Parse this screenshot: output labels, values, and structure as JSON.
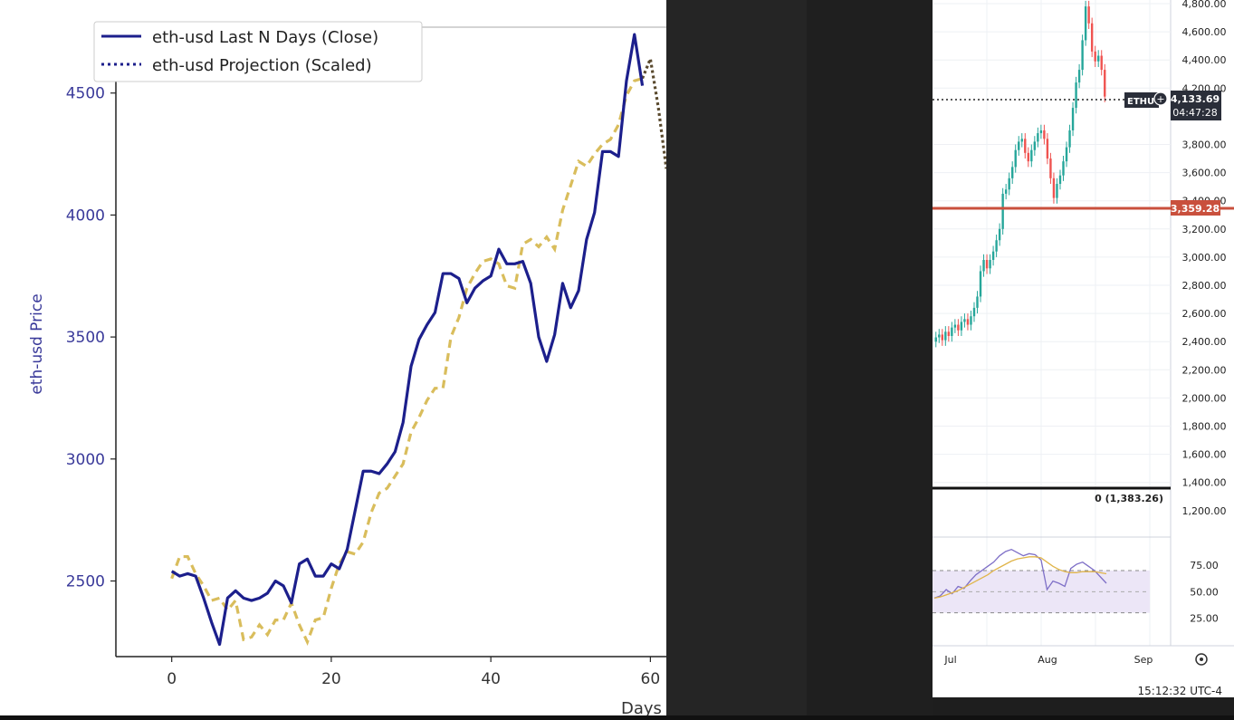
{
  "left_chart": {
    "ylabel": "eth-usd Price",
    "xlabel": "Days",
    "legend": {
      "close_label": "eth-usd Last N Days (Close)",
      "projection_label": "eth-usd Projection (Scaled)"
    },
    "colors": {
      "close": "#1c1f8c",
      "projection": "#d9bd5c",
      "projection_tail": "#5a4a2e",
      "axis_text": "#3a3a9a"
    }
  },
  "chart_data": [
    {
      "type": "line",
      "title": "",
      "xlabel": "Days",
      "ylabel": "eth-usd Price",
      "xlim": [
        -7,
        62
      ],
      "ylim": [
        2190,
        4770
      ],
      "xticks": [
        0,
        20,
        40,
        60
      ],
      "yticks": [
        2500,
        3000,
        3500,
        4000,
        4500
      ],
      "legend_position": "top-left",
      "grid": false,
      "series": [
        {
          "name": "eth-usd Last N Days (Close)",
          "style": "solid",
          "color": "#1c1f8c",
          "x": [
            0,
            1,
            2,
            3,
            4,
            5,
            6,
            7,
            8,
            9,
            10,
            11,
            12,
            13,
            14,
            15,
            16,
            17,
            18,
            19,
            20,
            21,
            22,
            23,
            24,
            25,
            26,
            27,
            28,
            29,
            30,
            31,
            32,
            33,
            34,
            35,
            36,
            37,
            38,
            39,
            40,
            41,
            42,
            43,
            44,
            45,
            46,
            47,
            48,
            49,
            50,
            51,
            52,
            53,
            54,
            55,
            56,
            57,
            58,
            59
          ],
          "values": [
            2540,
            2520,
            2530,
            2520,
            2430,
            2330,
            2240,
            2430,
            2460,
            2430,
            2420,
            2430,
            2450,
            2500,
            2480,
            2410,
            2570,
            2590,
            2520,
            2520,
            2570,
            2550,
            2630,
            2790,
            2950,
            2950,
            2940,
            2980,
            3030,
            3150,
            3380,
            3490,
            3550,
            3600,
            3760,
            3760,
            3740,
            3640,
            3700,
            3730,
            3750,
            3860,
            3800,
            3800,
            3810,
            3720,
            3500,
            3400,
            3510,
            3720,
            3620,
            3690,
            3900,
            4010,
            4260,
            4260,
            4240,
            4550,
            4740,
            4530
          ]
        },
        {
          "name": "eth-usd Projection (Scaled)",
          "style": "dashed",
          "color": "#d9bd5c",
          "x": [
            0,
            1,
            2,
            3,
            4,
            5,
            6,
            7,
            8,
            9,
            10,
            11,
            12,
            13,
            14,
            15,
            16,
            17,
            18,
            19,
            20,
            21,
            22,
            23,
            24,
            25,
            26,
            27,
            28,
            29,
            30,
            31,
            32,
            33,
            34,
            35,
            36,
            37,
            38,
            39,
            40,
            41,
            42,
            43,
            44,
            45,
            46,
            47,
            48,
            49,
            50,
            51,
            52,
            53,
            54,
            55,
            56,
            57,
            58,
            59,
            60,
            61,
            62
          ],
          "values": [
            2510,
            2600,
            2600,
            2530,
            2480,
            2420,
            2430,
            2380,
            2420,
            2260,
            2270,
            2320,
            2280,
            2340,
            2340,
            2410,
            2320,
            2250,
            2340,
            2350,
            2470,
            2570,
            2620,
            2610,
            2660,
            2780,
            2860,
            2880,
            2930,
            2980,
            3110,
            3170,
            3240,
            3290,
            3290,
            3500,
            3580,
            3700,
            3760,
            3810,
            3820,
            3800,
            3710,
            3700,
            3880,
            3900,
            3870,
            3910,
            3860,
            4020,
            4120,
            4220,
            4200,
            4250,
            4290,
            4310,
            4370,
            4490,
            4550,
            4560,
            4640,
            4440,
            4190
          ]
        }
      ]
    },
    {
      "type": "candlestick",
      "title": "",
      "price_axis_ticks": [
        "4,800.00",
        "4,600.00",
        "4,400.00",
        "4,200.00",
        "3,800.00",
        "3,600.00",
        "3,400.00",
        "3,200.00",
        "3,000.00",
        "2,800.00",
        "2,600.00",
        "2,400.00",
        "2,200.00",
        "2,000.00",
        "1,800.00",
        "1,600.00",
        "1,400.00",
        "1,200.00"
      ],
      "time_axis_ticks": [
        "Jul",
        "Aug",
        "Sep"
      ],
      "current_price": "4,133.69",
      "countdown": "04:47:28",
      "horizontal_level": "3,359.28",
      "symbol_tag": "ETHU",
      "sub_pane_label": "0 (1,383.26)",
      "approx_close_range": [
        2400,
        4800
      ]
    },
    {
      "type": "line",
      "title": "",
      "y_ticks": [
        "75.00",
        "50.00",
        "25.00"
      ],
      "upper_band": 70,
      "lower_band": 30,
      "series": [
        {
          "name": "",
          "color": "#7e6fc7",
          "values": [
            44,
            46,
            52,
            48,
            55,
            53,
            60,
            66,
            70,
            74,
            78,
            84,
            88,
            90,
            87,
            84,
            86,
            85,
            80,
            52,
            60,
            58,
            55,
            72,
            76,
            78,
            74,
            70,
            64,
            58
          ]
        },
        {
          "name": "",
          "color": "#e0b54a",
          "values": [
            44,
            45,
            47,
            49,
            51,
            54,
            57,
            60,
            63,
            66,
            70,
            73,
            76,
            79,
            81,
            82,
            83,
            83,
            82,
            78,
            74,
            71,
            69,
            68,
            68,
            69,
            69,
            69,
            68,
            67
          ]
        }
      ]
    }
  ],
  "right_chart": {
    "time_label": "15:12:32 UTC-4",
    "settings_icon": "gear-icon",
    "add_icon": "plus-circle-icon",
    "colors": {
      "up": "#26a69a",
      "down": "#ef5350",
      "level_line": "#c9503d",
      "price_tag": "#2a2e39",
      "rsi_fill": "#ece6f7"
    }
  }
}
